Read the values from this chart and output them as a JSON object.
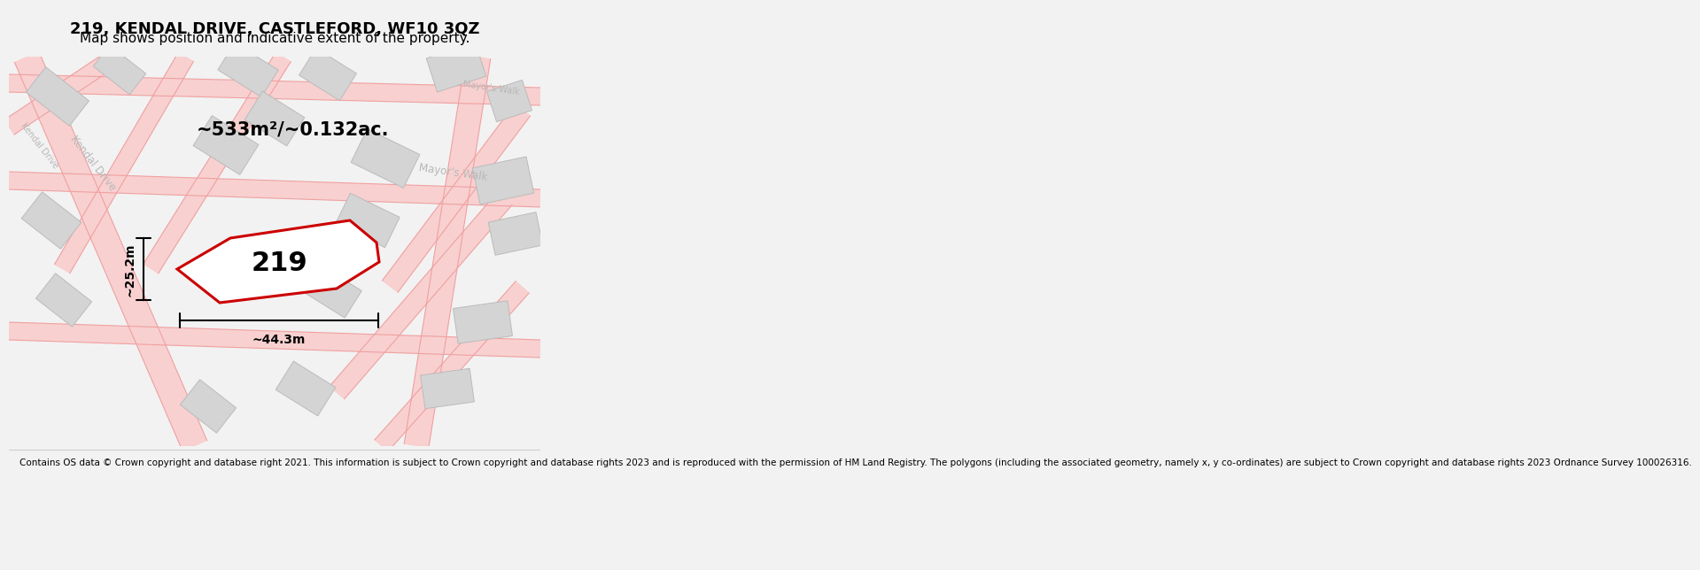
{
  "title": "219, KENDAL DRIVE, CASTLEFORD, WF10 3QZ",
  "subtitle": "Map shows position and indicative extent of the property.",
  "footer": "Contains OS data © Crown copyright and database right 2021. This information is subject to Crown copyright and database rights 2023 and is reproduced with the permission of HM Land Registry. The polygons (including the associated geometry, namely x, y co-ordinates) are subject to Crown copyright and database rights 2023 Ordnance Survey 100026316.",
  "area_label": "~533m²/~0.132ac.",
  "property_number": "219",
  "dim_width": "~44.3m",
  "dim_height": "~25.2m",
  "bg_color": "#f2f2f2",
  "map_bg": "#ffffff",
  "road_color": "#f0a0a0",
  "road_fill": "#f8d0d0",
  "building_fill": "#d4d4d4",
  "building_edge": "#bbbbbb",
  "property_fill": "#ffffff",
  "property_edge": "#cc0000",
  "street_label_color": "#b8b8b8",
  "title_fontsize": 13,
  "subtitle_fontsize": 11,
  "footer_fontsize": 7.5
}
